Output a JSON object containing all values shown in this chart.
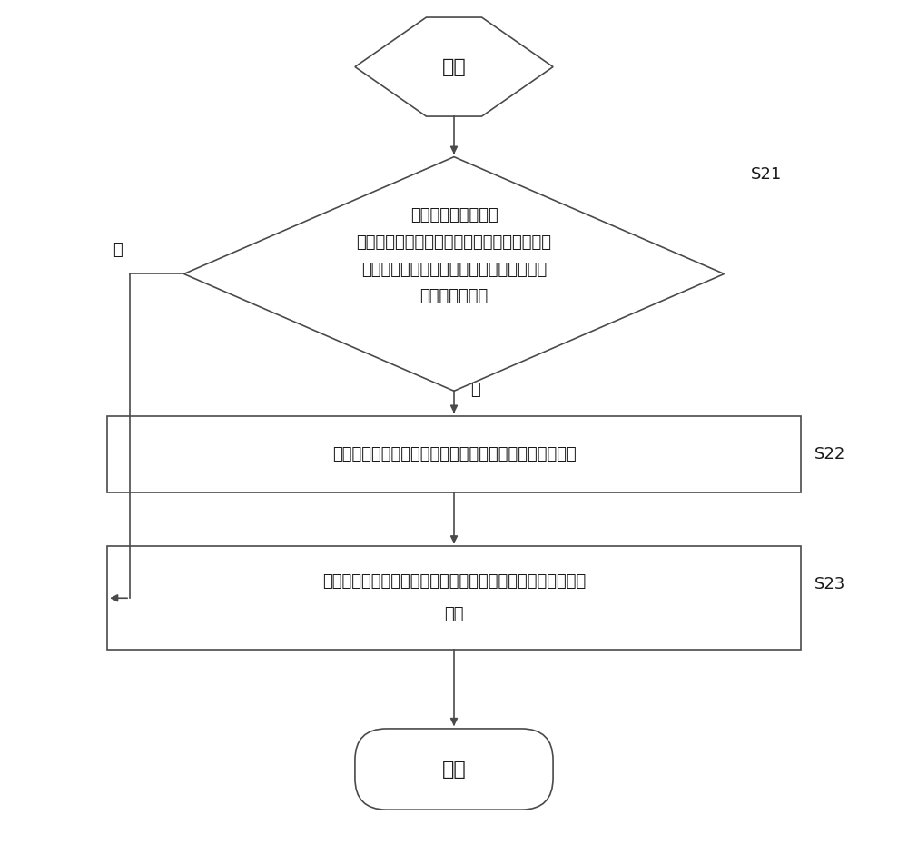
{
  "bg_color": "#ffffff",
  "line_color": "#4a4a4a",
  "shape_fill": "#ffffff",
  "shape_edge": "#4a4a4a",
  "font_color": "#1a1a1a",
  "start_label": "开始",
  "end_label": "结束",
  "diamond_line1": "对应云终端虚拟桌面",
  "diamond_line2": "的每包音视频传输时间值和建立网络通信所需",
  "diamond_line3": "要时间值之和是否小于本地终端的每包音视",
  "diamond_line4": "频传输时间值？",
  "box1_label": "确定云终端虚拟桌面的传输能力比本地终端的传输能力强",
  "box2_line1": "确定所述云终端虚拟桌面的传输能力比所述本地终端的传输能",
  "box2_line2": "力弱",
  "yes_label": "是",
  "no_label": "否",
  "s21_label": "S21",
  "s22_label": "S22",
  "s23_label": "S23",
  "lw": 1.2,
  "font_size_main": 14,
  "font_size_small": 13,
  "font_size_label": 13
}
